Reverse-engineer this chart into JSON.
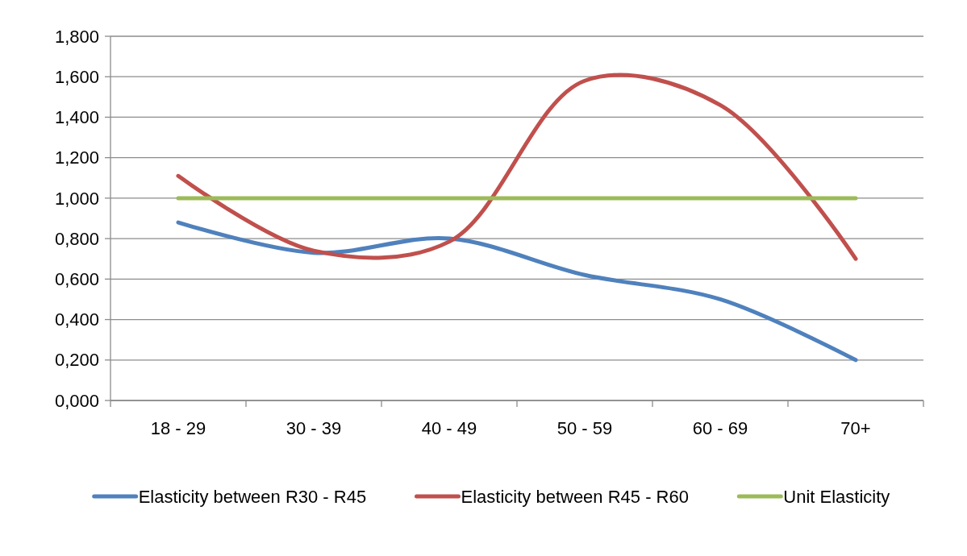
{
  "chart_data": {
    "type": "line",
    "categories": [
      "18 - 29",
      "30 - 39",
      "40 - 49",
      "50 - 59",
      "60 - 69",
      "70+"
    ],
    "series": [
      {
        "name": "Elasticity between R30 - R45",
        "color": "#4f81bd",
        "values": [
          0.88,
          0.73,
          0.8,
          0.62,
          0.5,
          0.2
        ]
      },
      {
        "name": "Elasticity between R45 - R60",
        "color": "#c0504d",
        "values": [
          1.11,
          0.74,
          0.785,
          1.58,
          1.46,
          0.7
        ]
      },
      {
        "name": "Unit Elasticity",
        "color": "#9bbb59",
        "values": [
          1,
          1,
          1,
          1,
          1,
          1
        ]
      }
    ],
    "ylim": [
      0,
      1.8
    ],
    "yticks": [
      {
        "value": 0,
        "label": "0,000"
      },
      {
        "value": 0.2,
        "label": "0,200"
      },
      {
        "value": 0.4,
        "label": "0,400"
      },
      {
        "value": 0.6,
        "label": "0,600"
      },
      {
        "value": 0.8,
        "label": "0,800"
      },
      {
        "value": 1,
        "label": "1,000"
      },
      {
        "value": 1.2,
        "label": "1,200"
      },
      {
        "value": 1.4,
        "label": "1,400"
      },
      {
        "value": 1.6,
        "label": "1,600"
      },
      {
        "value": 1.8,
        "label": "1,800"
      }
    ],
    "grid": "y",
    "legend": "bottom",
    "marker": "none",
    "line_style": "solid"
  }
}
